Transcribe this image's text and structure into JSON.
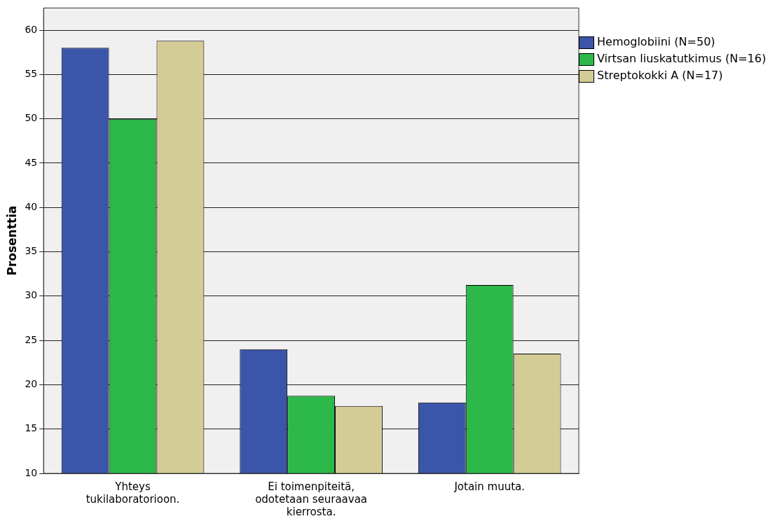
{
  "chart_data": {
    "type": "bar",
    "ylabel": "Prosenttia",
    "categories": [
      "Yhteys tukilaboratorioon.",
      "Ei toimenpiteitä, odotetaan seuraavaa kierrosta.",
      "Jotain muuta."
    ],
    "series": [
      {
        "name": "Hemoglobiini (N=50)",
        "color": "#3b55a8",
        "values": [
          58,
          24,
          18
        ]
      },
      {
        "name": "Virtsan liuskatutkimus (N=16)",
        "color": "#2db84a",
        "values": [
          50,
          18.75,
          31.25
        ]
      },
      {
        "name": "Streptokokki A (N=17)",
        "color": "#d4cc96",
        "values": [
          58.8,
          17.6,
          23.5
        ]
      }
    ],
    "ylim": [
      10,
      62.5
    ],
    "yticks": [
      10,
      15,
      20,
      25,
      30,
      35,
      40,
      45,
      50,
      55,
      60
    ],
    "grid": "y",
    "legend": "right"
  }
}
